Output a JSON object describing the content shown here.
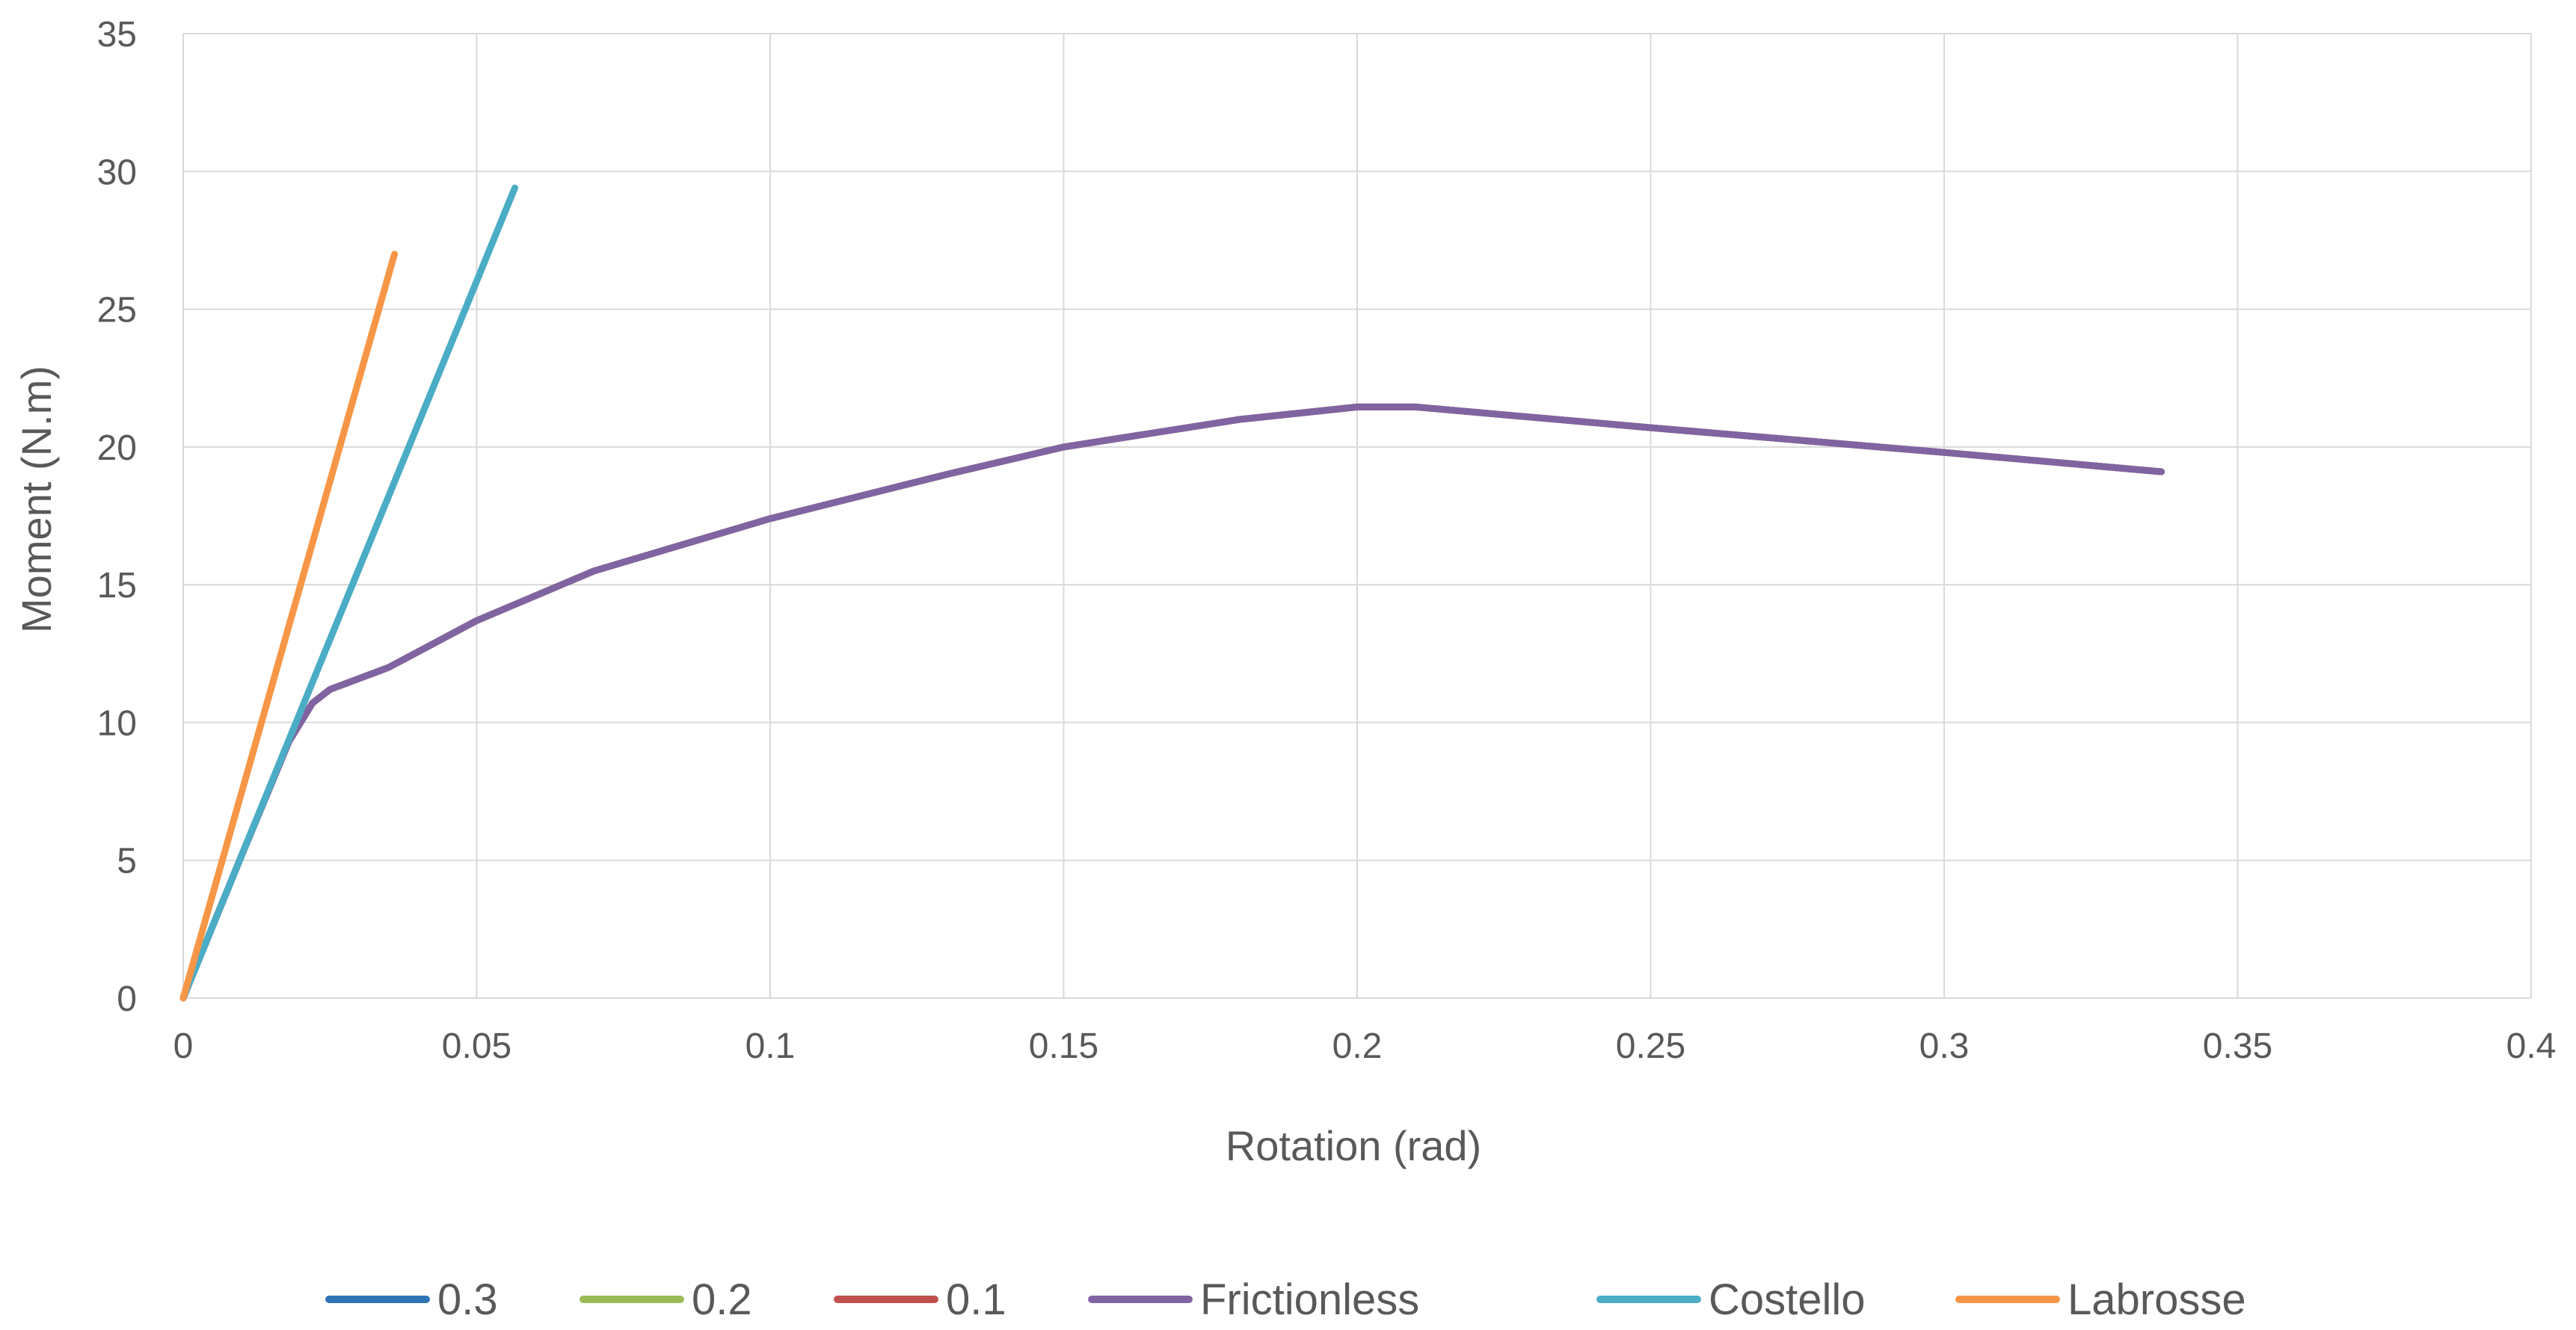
{
  "chart_data": {
    "type": "line",
    "title": "",
    "xlabel": "Rotation (rad)",
    "ylabel": "Moment (N.m)",
    "xlim": [
      0,
      0.4
    ],
    "ylim": [
      0,
      35
    ],
    "xticks": [
      0,
      0.05,
      0.1,
      0.15,
      0.2,
      0.25,
      0.3,
      0.35,
      0.4
    ],
    "xtick_labels": [
      "0",
      "0.05",
      "0.1",
      "0.15",
      "0.2",
      "0.25",
      "0.3",
      "0.35",
      "0.4"
    ],
    "yticks": [
      0,
      5,
      10,
      15,
      20,
      25,
      30,
      35
    ],
    "ytick_labels": [
      "0",
      "5",
      "10",
      "15",
      "20",
      "25",
      "30",
      "35"
    ],
    "grid": true,
    "legend_position": "bottom",
    "series": [
      {
        "name": "0.3",
        "color": "#2e75b6",
        "x": [
          0,
          0.01,
          0.018,
          0.022,
          0.025,
          0.035,
          0.05,
          0.07,
          0.1,
          0.13,
          0.15,
          0.18,
          0.2,
          0.21,
          0.25,
          0.3,
          0.337
        ],
        "y": [
          0,
          5.2,
          9.3,
          10.7,
          11.2,
          12.0,
          13.7,
          15.5,
          17.4,
          19.0,
          20.0,
          21.0,
          21.45,
          21.45,
          20.7,
          19.8,
          19.1
        ]
      },
      {
        "name": "0.2",
        "color": "#9bbb59",
        "x": [
          0,
          0.01,
          0.018,
          0.022,
          0.025,
          0.035,
          0.05,
          0.07,
          0.1,
          0.13,
          0.15,
          0.18,
          0.2,
          0.21,
          0.25,
          0.3,
          0.337
        ],
        "y": [
          0,
          5.2,
          9.3,
          10.7,
          11.2,
          12.0,
          13.7,
          15.5,
          17.4,
          19.0,
          20.0,
          21.0,
          21.45,
          21.45,
          20.7,
          19.8,
          19.1
        ]
      },
      {
        "name": "0.1",
        "color": "#c0504d",
        "x": [
          0,
          0.01,
          0.018,
          0.022,
          0.025,
          0.035,
          0.05,
          0.07,
          0.1,
          0.13,
          0.15,
          0.18,
          0.2,
          0.21,
          0.25,
          0.3,
          0.337
        ],
        "y": [
          0,
          5.2,
          9.3,
          10.7,
          11.2,
          12.0,
          13.7,
          15.5,
          17.4,
          19.0,
          20.0,
          21.0,
          21.45,
          21.45,
          20.7,
          19.8,
          19.1
        ]
      },
      {
        "name": "Frictionless",
        "color": "#8064a2",
        "x": [
          0,
          0.01,
          0.018,
          0.022,
          0.025,
          0.035,
          0.05,
          0.07,
          0.1,
          0.13,
          0.15,
          0.18,
          0.2,
          0.21,
          0.25,
          0.3,
          0.337
        ],
        "y": [
          0,
          5.2,
          9.3,
          10.7,
          11.2,
          12.0,
          13.7,
          15.5,
          17.4,
          19.0,
          20.0,
          21.0,
          21.45,
          21.45,
          20.7,
          19.8,
          19.1
        ]
      },
      {
        "name": "Costello",
        "color": "#4bacc6",
        "x": [
          0,
          0.0565
        ],
        "y": [
          0,
          29.4
        ]
      },
      {
        "name": "Labrosse",
        "color": "#f79646",
        "x": [
          0,
          0.036
        ],
        "y": [
          0,
          27.0
        ]
      }
    ]
  }
}
